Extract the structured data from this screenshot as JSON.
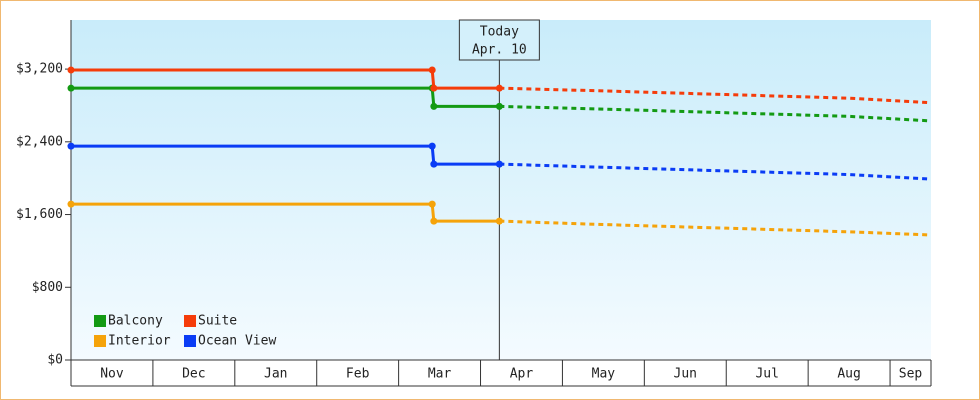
{
  "chart_data": {
    "type": "line",
    "today": {
      "x": 5.23,
      "label": "Today",
      "date": "Apr. 10"
    },
    "categories": [
      "Nov",
      "Dec",
      "Jan",
      "Feb",
      "Mar",
      "Apr",
      "May",
      "Jun",
      "Jul",
      "Aug",
      "Sep"
    ],
    "xlim": [
      0,
      10.5
    ],
    "ylim": [
      0,
      3740
    ],
    "yticks": [
      {
        "value": 0,
        "label": "$0"
      },
      {
        "value": 800,
        "label": "$800"
      },
      {
        "value": 1600,
        "label": "$1,600"
      },
      {
        "value": 2400,
        "label": "$2,400"
      },
      {
        "value": 3200,
        "label": "$3,200"
      }
    ],
    "x": [
      0,
      4.41,
      4.43,
      5.23,
      6.5,
      8,
      9.5,
      10.5
    ],
    "series": [
      {
        "name": "Balcony",
        "color": "#139a13",
        "values": [
          2990,
          2990,
          2790,
          2790,
          2760,
          2720,
          2680,
          2630
        ]
      },
      {
        "name": "Suite",
        "color": "#f53c0a",
        "values": [
          3190,
          3190,
          2990,
          2990,
          2960,
          2920,
          2880,
          2830
        ]
      },
      {
        "name": "Interior",
        "color": "#f5a30a",
        "values": [
          1715,
          1715,
          1528,
          1528,
          1490,
          1450,
          1410,
          1375
        ]
      },
      {
        "name": "Ocean View",
        "color": "#0a3cf5",
        "values": [
          2353,
          2353,
          2155,
          2155,
          2120,
          2080,
          2040,
          1990
        ]
      }
    ]
  }
}
